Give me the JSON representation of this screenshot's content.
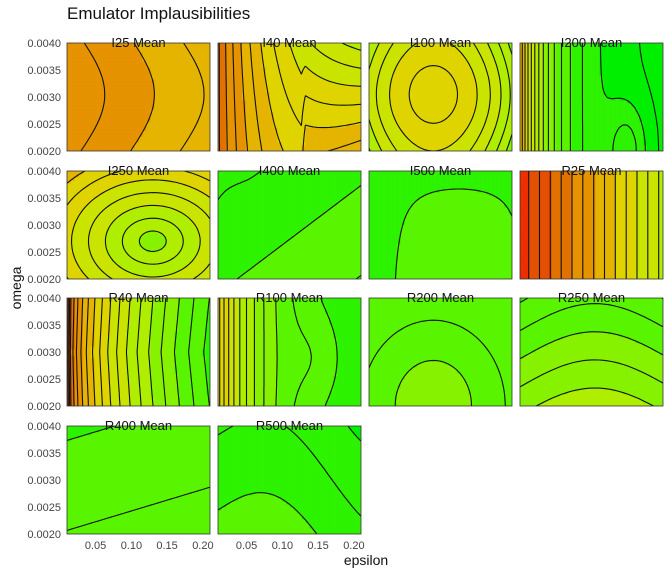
{
  "chart_data": {
    "type": "contour",
    "title": "Emulator Implausibilities",
    "xlabel": "epsilon",
    "ylabel": "omega",
    "xlim": [
      0.01,
      0.21
    ],
    "ylim": [
      0.002,
      0.004
    ],
    "x_ticks": [
      "0.05",
      "0.10",
      "0.15",
      "0.20"
    ],
    "x_tick_values": [
      0.05,
      0.1,
      0.15,
      0.2
    ],
    "y_ticks": [
      "0.0020",
      "0.0025",
      "0.0030",
      "0.0035",
      "0.0040"
    ],
    "y_tick_values": [
      0.002,
      0.0025,
      0.003,
      0.0035,
      0.004
    ],
    "panels": [
      {
        "label": "I25 Mean",
        "kind": "vert",
        "c0": 8.6,
        "cx": -0.8,
        "colors_note": "orange"
      },
      {
        "label": "I40 Mean",
        "kind": "mix_i40"
      },
      {
        "label": "I100 Mean",
        "kind": "i100"
      },
      {
        "label": "I200 Mean",
        "kind": "i200"
      },
      {
        "label": "I250 Mean",
        "kind": "radial_i250"
      },
      {
        "label": "I400 Mean",
        "kind": "i400"
      },
      {
        "label": "I500 Mean",
        "kind": "i500"
      },
      {
        "label": "R25 Mean",
        "kind": "r25"
      },
      {
        "label": "R40 Mean",
        "kind": "r40"
      },
      {
        "label": "R100 Mean",
        "kind": "r100"
      },
      {
        "label": "R200 Mean",
        "kind": "r200"
      },
      {
        "label": "R250 Mean",
        "kind": "r250"
      },
      {
        "label": "R400 Mean",
        "kind": "r400"
      },
      {
        "label": "R500 Mean",
        "kind": "r500"
      }
    ],
    "color_scale": [
      "#00ee00",
      "#55f500",
      "#aaf000",
      "#dddd00",
      "#e8a000",
      "#e06000",
      "#f02000"
    ]
  }
}
